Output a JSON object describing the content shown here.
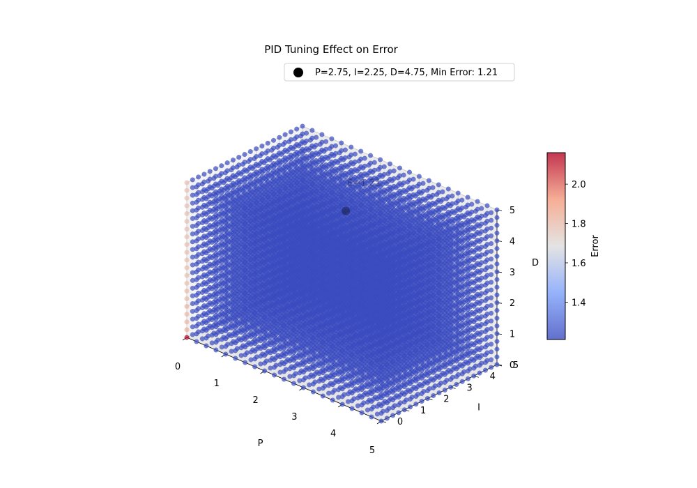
{
  "chart_data": {
    "type": "scatter",
    "projection": "3d",
    "title": "PID Tuning Effect on Error",
    "axes": {
      "x": {
        "label": "P",
        "range": [
          0,
          5
        ],
        "ticks": [
          "0",
          "1",
          "2",
          "3",
          "4",
          "5"
        ]
      },
      "y": {
        "label": "I",
        "range": [
          0,
          5
        ],
        "ticks": [
          "0",
          "1",
          "2",
          "3",
          "4",
          "5"
        ]
      },
      "z": {
        "label": "D",
        "range": [
          0,
          5
        ],
        "ticks": [
          "0",
          "1",
          "2",
          "3",
          "4",
          "5"
        ]
      }
    },
    "grid": {
      "p_values": [
        0,
        0.25,
        0.5,
        0.75,
        1,
        1.25,
        1.5,
        1.75,
        2,
        2.25,
        2.5,
        2.75,
        3,
        3.25,
        3.5,
        3.75,
        4,
        4.25,
        4.5,
        4.75,
        5
      ],
      "i_values": [
        0,
        0.25,
        0.5,
        0.75,
        1,
        1.25,
        1.5,
        1.75,
        2,
        2.25,
        2.5,
        2.75,
        3,
        3.25,
        3.5,
        3.75,
        4,
        4.25,
        4.5,
        4.75,
        5
      ],
      "d_values": [
        0,
        0.25,
        0.5,
        0.75,
        1,
        1.25,
        1.5,
        1.75,
        2,
        2.25,
        2.5,
        2.75,
        3,
        3.25,
        3.5,
        3.75,
        4,
        4.25,
        4.5,
        4.75,
        5
      ],
      "error_typical": 1.21,
      "p_zero_i_zero_error_by_d": [
        2.16,
        1.85,
        1.83,
        1.82,
        1.82,
        1.81,
        1.81,
        1.8,
        1.8,
        1.8,
        1.8,
        1.79,
        1.79,
        1.79,
        1.79,
        1.79,
        1.79,
        1.79,
        1.79,
        1.79,
        1.79
      ]
    },
    "colorbar": {
      "label": "Error",
      "range": [
        1.21,
        2.16
      ],
      "ticks": [
        "1.4",
        "1.6",
        "1.8",
        "2.0"
      ],
      "colormap": "coolwarm"
    },
    "highlight": {
      "P": 2.75,
      "I": 2.25,
      "D": 4.75,
      "error": 1.21,
      "annotation": "E=1.21",
      "color": "#000000"
    },
    "legend": {
      "placement": "top-right",
      "entries": [
        "P=2.75, I=2.25, D=4.75, Min Error: 1.21"
      ]
    },
    "marker_alpha": 0.7
  }
}
